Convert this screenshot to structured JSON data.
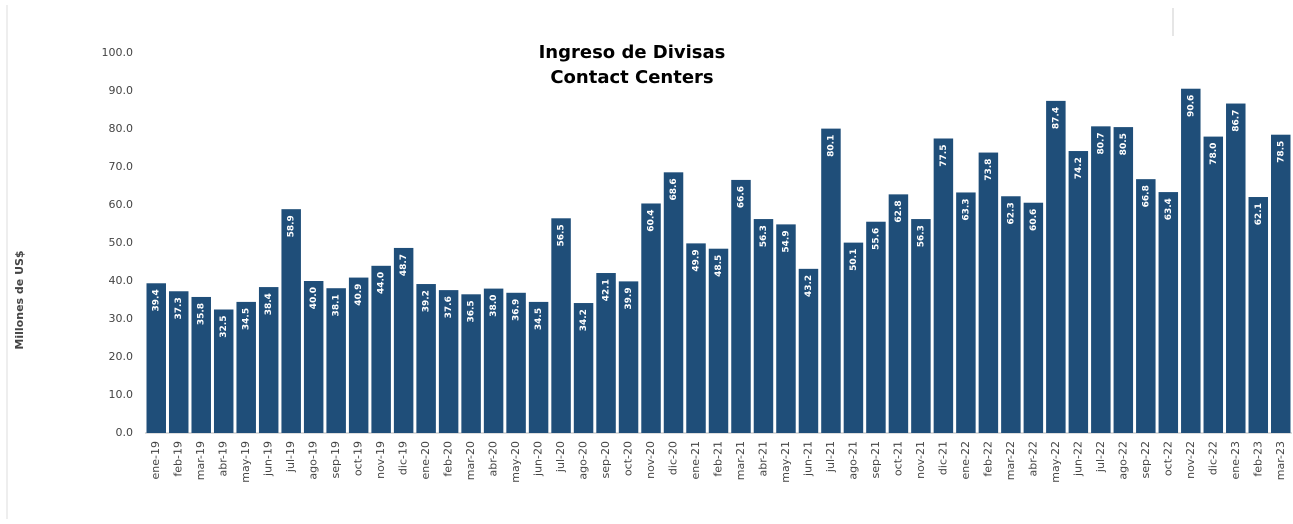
{
  "chart_data": {
    "type": "bar",
    "title": "Ingreso de Divisas",
    "subtitle": "Contact Centers",
    "y_label": "Millones de US$",
    "color": "#1f4e79",
    "categories": [
      "ene-19",
      "feb-19",
      "mar-19",
      "abr-19",
      "may-19",
      "jun-19",
      "jul-19",
      "ago-19",
      "sep-19",
      "oct-19",
      "nov-19",
      "dic-19",
      "ene-20",
      "feb-20",
      "mar-20",
      "abr-20",
      "may-20",
      "jun-20",
      "jul-20",
      "ago-20",
      "sep-20",
      "oct-20",
      "nov-20",
      "dic-20",
      "ene-21",
      "feb-21",
      "mar-21",
      "abr-21",
      "may-21",
      "jun-21",
      "jul-21",
      "ago-21",
      "sep-21",
      "oct-21",
      "nov-21",
      "dic-21",
      "ene-22",
      "feb-22",
      "mar-22",
      "abr-22",
      "may-22",
      "jun-22",
      "jul-22",
      "ago-22",
      "sep-22",
      "oct-22",
      "nov-22",
      "dic-22",
      "ene-23",
      "feb-23",
      "mar-23"
    ],
    "values": [
      39.4,
      37.3,
      35.8,
      32.5,
      34.5,
      38.4,
      58.9,
      40.0,
      38.1,
      40.9,
      44.0,
      48.7,
      39.2,
      37.6,
      36.5,
      38.0,
      36.9,
      34.5,
      56.5,
      34.2,
      42.1,
      39.9,
      60.4,
      68.6,
      49.9,
      48.5,
      66.6,
      56.3,
      54.9,
      43.2,
      80.1,
      50.1,
      55.6,
      62.8,
      56.3,
      77.5,
      63.3,
      73.8,
      62.3,
      60.6,
      87.4,
      74.2,
      80.7,
      80.5,
      66.8,
      63.4,
      90.6,
      78.0,
      86.7,
      62.1,
      78.5
    ],
    "value_labels": [
      "39.4",
      "37.3",
      "35.8",
      "32.5",
      "34.5",
      "38.4",
      "58.9",
      "40.0",
      "38.1",
      "40.9",
      "44.0",
      "48.7",
      "39.2",
      "37.6",
      "36.5",
      "38.0",
      "36.9",
      "34.5",
      "56.5",
      "34.2",
      "42.1",
      "39.9",
      "60.4",
      "68.6",
      "49.9",
      "48.5",
      "66.6",
      "56.3",
      "54.9",
      "43.2",
      "80.1",
      "50.1",
      "55.6",
      "62.8",
      "56.3",
      "77.5",
      "63.3",
      "73.8",
      "62.3",
      "60.6",
      "87.4",
      "74.2",
      "80.7",
      "80.5",
      "66.8",
      "63.4",
      "90.6",
      "78.0",
      "86.7",
      "62.1",
      "78.5"
    ],
    "ylim": [
      0,
      100
    ],
    "yticks": [
      {
        "value": 0,
        "label": "0.0"
      },
      {
        "value": 10,
        "label": "10.0"
      },
      {
        "value": 20,
        "label": "20.0"
      },
      {
        "value": 30,
        "label": "30.0"
      },
      {
        "value": 40,
        "label": "40.0"
      },
      {
        "value": 50,
        "label": "50.0"
      },
      {
        "value": 60,
        "label": "60.0"
      },
      {
        "value": 70,
        "label": "70.0"
      },
      {
        "value": 80,
        "label": "80.0"
      },
      {
        "value": 90,
        "label": "90.0"
      },
      {
        "value": 100,
        "label": "100.0"
      }
    ]
  }
}
